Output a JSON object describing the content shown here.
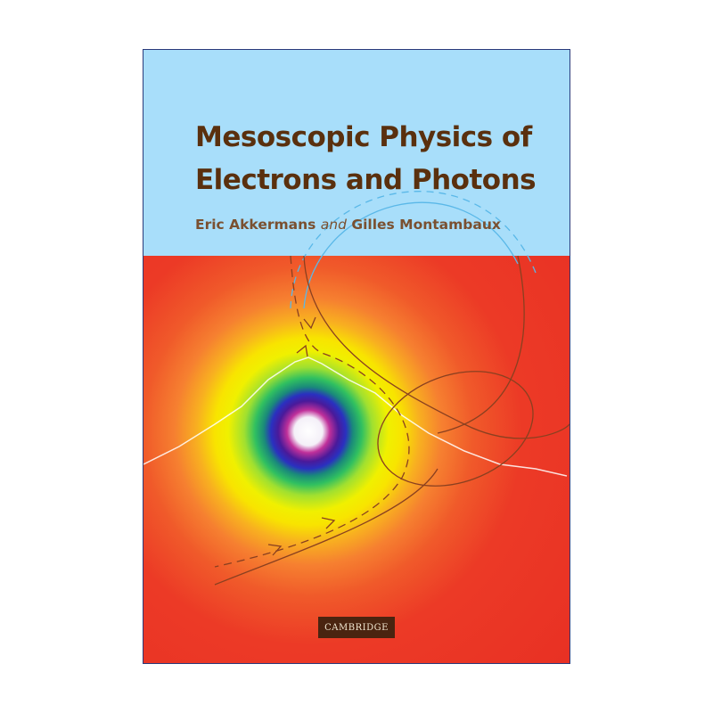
{
  "book": {
    "title_line1": "Mesoscopic Physics of",
    "title_line2": "Electrons and Photons",
    "author1": "Eric Akkermans",
    "author_conjunction": "and",
    "author2": "Gilles Montambaux",
    "publisher": "CAMBRIDGE"
  },
  "colors": {
    "sky": "#a8defa",
    "title_brown": "#5a300e",
    "background_red": "#e83024",
    "publisher_box": "#4a2410"
  }
}
